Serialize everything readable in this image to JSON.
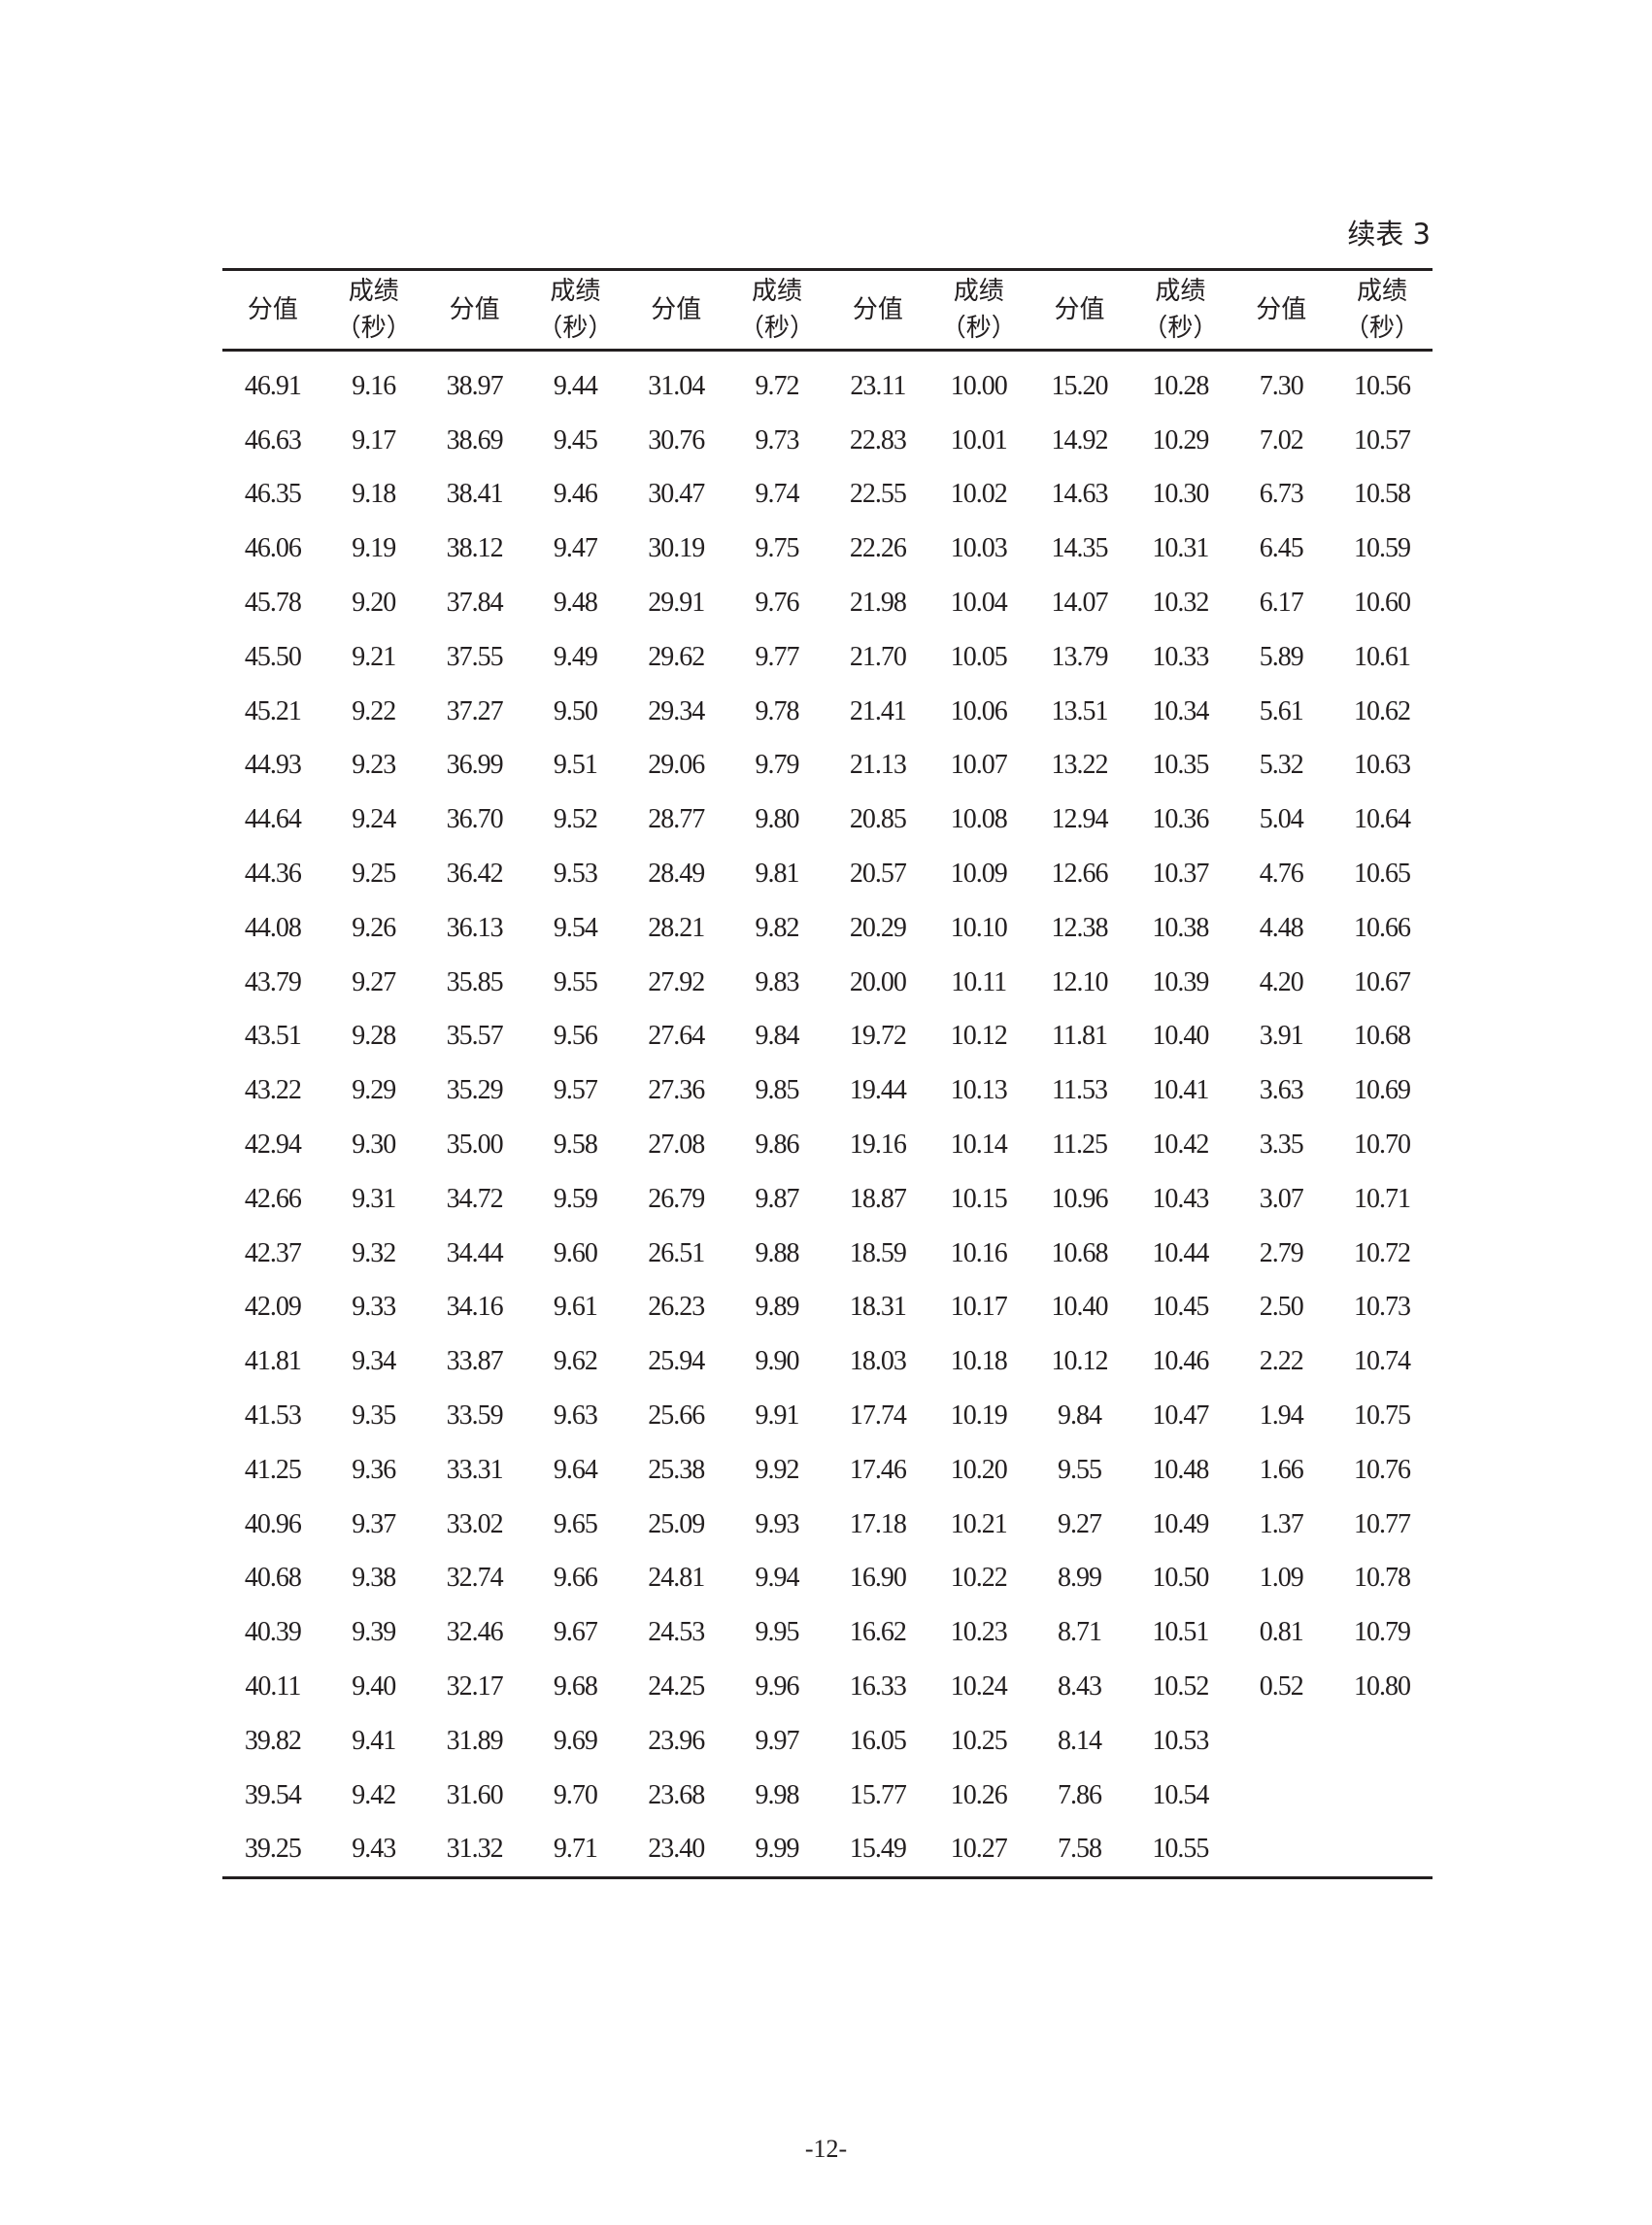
{
  "caption": "续表 3",
  "headers": {
    "score": "分值",
    "result_line1": "成绩",
    "result_line2": "（秒）"
  },
  "rows": [
    [
      "46.91",
      "9.16",
      "38.97",
      "9.44",
      "31.04",
      "9.72",
      "23.11",
      "10.00",
      "15.20",
      "10.28",
      "7.30",
      "10.56"
    ],
    [
      "46.63",
      "9.17",
      "38.69",
      "9.45",
      "30.76",
      "9.73",
      "22.83",
      "10.01",
      "14.92",
      "10.29",
      "7.02",
      "10.57"
    ],
    [
      "46.35",
      "9.18",
      "38.41",
      "9.46",
      "30.47",
      "9.74",
      "22.55",
      "10.02",
      "14.63",
      "10.30",
      "6.73",
      "10.58"
    ],
    [
      "46.06",
      "9.19",
      "38.12",
      "9.47",
      "30.19",
      "9.75",
      "22.26",
      "10.03",
      "14.35",
      "10.31",
      "6.45",
      "10.59"
    ],
    [
      "45.78",
      "9.20",
      "37.84",
      "9.48",
      "29.91",
      "9.76",
      "21.98",
      "10.04",
      "14.07",
      "10.32",
      "6.17",
      "10.60"
    ],
    [
      "45.50",
      "9.21",
      "37.55",
      "9.49",
      "29.62",
      "9.77",
      "21.70",
      "10.05",
      "13.79",
      "10.33",
      "5.89",
      "10.61"
    ],
    [
      "45.21",
      "9.22",
      "37.27",
      "9.50",
      "29.34",
      "9.78",
      "21.41",
      "10.06",
      "13.51",
      "10.34",
      "5.61",
      "10.62"
    ],
    [
      "44.93",
      "9.23",
      "36.99",
      "9.51",
      "29.06",
      "9.79",
      "21.13",
      "10.07",
      "13.22",
      "10.35",
      "5.32",
      "10.63"
    ],
    [
      "44.64",
      "9.24",
      "36.70",
      "9.52",
      "28.77",
      "9.80",
      "20.85",
      "10.08",
      "12.94",
      "10.36",
      "5.04",
      "10.64"
    ],
    [
      "44.36",
      "9.25",
      "36.42",
      "9.53",
      "28.49",
      "9.81",
      "20.57",
      "10.09",
      "12.66",
      "10.37",
      "4.76",
      "10.65"
    ],
    [
      "44.08",
      "9.26",
      "36.13",
      "9.54",
      "28.21",
      "9.82",
      "20.29",
      "10.10",
      "12.38",
      "10.38",
      "4.48",
      "10.66"
    ],
    [
      "43.79",
      "9.27",
      "35.85",
      "9.55",
      "27.92",
      "9.83",
      "20.00",
      "10.11",
      "12.10",
      "10.39",
      "4.20",
      "10.67"
    ],
    [
      "43.51",
      "9.28",
      "35.57",
      "9.56",
      "27.64",
      "9.84",
      "19.72",
      "10.12",
      "11.81",
      "10.40",
      "3.91",
      "10.68"
    ],
    [
      "43.22",
      "9.29",
      "35.29",
      "9.57",
      "27.36",
      "9.85",
      "19.44",
      "10.13",
      "11.53",
      "10.41",
      "3.63",
      "10.69"
    ],
    [
      "42.94",
      "9.30",
      "35.00",
      "9.58",
      "27.08",
      "9.86",
      "19.16",
      "10.14",
      "11.25",
      "10.42",
      "3.35",
      "10.70"
    ],
    [
      "42.66",
      "9.31",
      "34.72",
      "9.59",
      "26.79",
      "9.87",
      "18.87",
      "10.15",
      "10.96",
      "10.43",
      "3.07",
      "10.71"
    ],
    [
      "42.37",
      "9.32",
      "34.44",
      "9.60",
      "26.51",
      "9.88",
      "18.59",
      "10.16",
      "10.68",
      "10.44",
      "2.79",
      "10.72"
    ],
    [
      "42.09",
      "9.33",
      "34.16",
      "9.61",
      "26.23",
      "9.89",
      "18.31",
      "10.17",
      "10.40",
      "10.45",
      "2.50",
      "10.73"
    ],
    [
      "41.81",
      "9.34",
      "33.87",
      "9.62",
      "25.94",
      "9.90",
      "18.03",
      "10.18",
      "10.12",
      "10.46",
      "2.22",
      "10.74"
    ],
    [
      "41.53",
      "9.35",
      "33.59",
      "9.63",
      "25.66",
      "9.91",
      "17.74",
      "10.19",
      "9.84",
      "10.47",
      "1.94",
      "10.75"
    ],
    [
      "41.25",
      "9.36",
      "33.31",
      "9.64",
      "25.38",
      "9.92",
      "17.46",
      "10.20",
      "9.55",
      "10.48",
      "1.66",
      "10.76"
    ],
    [
      "40.96",
      "9.37",
      "33.02",
      "9.65",
      "25.09",
      "9.93",
      "17.18",
      "10.21",
      "9.27",
      "10.49",
      "1.37",
      "10.77"
    ],
    [
      "40.68",
      "9.38",
      "32.74",
      "9.66",
      "24.81",
      "9.94",
      "16.90",
      "10.22",
      "8.99",
      "10.50",
      "1.09",
      "10.78"
    ],
    [
      "40.39",
      "9.39",
      "32.46",
      "9.67",
      "24.53",
      "9.95",
      "16.62",
      "10.23",
      "8.71",
      "10.51",
      "0.81",
      "10.79"
    ],
    [
      "40.11",
      "9.40",
      "32.17",
      "9.68",
      "24.25",
      "9.96",
      "16.33",
      "10.24",
      "8.43",
      "10.52",
      "0.52",
      "10.80"
    ],
    [
      "39.82",
      "9.41",
      "31.89",
      "9.69",
      "23.96",
      "9.97",
      "16.05",
      "10.25",
      "8.14",
      "10.53",
      "",
      ""
    ],
    [
      "39.54",
      "9.42",
      "31.60",
      "9.70",
      "23.68",
      "9.98",
      "15.77",
      "10.26",
      "7.86",
      "10.54",
      "",
      ""
    ],
    [
      "39.25",
      "9.43",
      "31.32",
      "9.71",
      "23.40",
      "9.99",
      "15.49",
      "10.27",
      "7.58",
      "10.55",
      "",
      ""
    ]
  ],
  "page_number": "-12-"
}
